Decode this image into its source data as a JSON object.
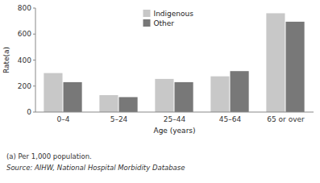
{
  "chart_data": {
    "type": "bar",
    "categories": [
      "0–4",
      "5–24",
      "25–44",
      "45–64",
      "65 or over"
    ],
    "series": [
      {
        "name": "Indigenous",
        "color": "#c8c8c8",
        "values": [
          300,
          130,
          255,
          275,
          760
        ]
      },
      {
        "name": "Other",
        "color": "#787878",
        "values": [
          230,
          115,
          230,
          315,
          695
        ]
      }
    ],
    "xlabel": "Age (years)",
    "ylabel": "Rate(a)",
    "ylim": [
      0,
      800
    ],
    "yticks": [
      0,
      200,
      400,
      600,
      800
    ],
    "grid": false,
    "legend": "upper center",
    "annotations": [
      "(a) Per 1,000 population.",
      "Source: AIHW, National Hospital Morbidity Database"
    ]
  }
}
